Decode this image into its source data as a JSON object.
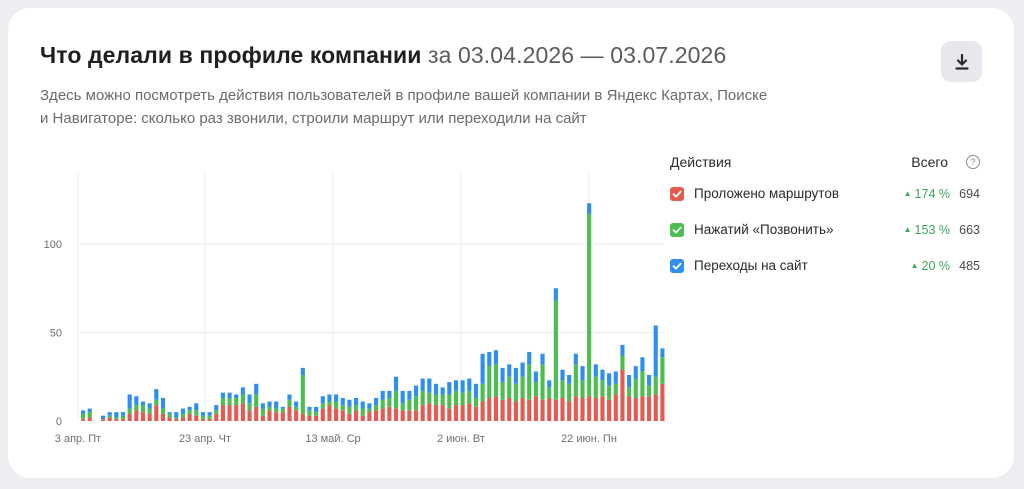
{
  "header": {
    "title": "Что делали в профиле компании",
    "period": "за 03.04.2026 — 03.07.2026",
    "subtitle_line1": "Здесь можно посмотреть действия пользователей в профиле вашей компании в Яндекс Картах, Поиске",
    "subtitle_line2": "и Навигаторе: сколько раз звонили, строили маршрут или переходили на сайт",
    "download_icon": "download-icon"
  },
  "legend": {
    "header_actions": "Действия",
    "header_total": "Всего",
    "help_glyph": "?",
    "items": [
      {
        "label": "Проложено маршрутов",
        "change": "174 %",
        "total": "694",
        "color": "#e35b52"
      },
      {
        "label": "Нажатий «Позвонить»",
        "change": "153 %",
        "total": "663",
        "color": "#4cbe50"
      },
      {
        "label": "Переходы на сайт",
        "change": "20 %",
        "total": "485",
        "color": "#2f8ff0"
      }
    ]
  },
  "colors": {
    "routes": "#e35b52",
    "calls": "#4cbe50",
    "site": "#2f8ff0",
    "up": "#3aa55a"
  },
  "chart_data": {
    "type": "bar",
    "stacked": true,
    "x_ticks": [
      "3 апр. Пт",
      "23 апр. Чт",
      "13 май. Ср",
      "2 июн. Вт",
      "22 июн. Пн"
    ],
    "y_ticks": [
      "0",
      "50",
      "100"
    ],
    "ylim": [
      0,
      140
    ],
    "grid": true,
    "series": [
      {
        "name": "Проложено маршрутов",
        "values": [
          1,
          2,
          0,
          1,
          2,
          1,
          1,
          4,
          6,
          5,
          4,
          9,
          4,
          2,
          1,
          2,
          4,
          3,
          1,
          1,
          4,
          9,
          9,
          9,
          10,
          6,
          8,
          3,
          6,
          5,
          5,
          8,
          6,
          4,
          3,
          3,
          7,
          9,
          7,
          6,
          4,
          6,
          3,
          5,
          6,
          7,
          8,
          7,
          6,
          6,
          6,
          9,
          10,
          9,
          9,
          7,
          9,
          9,
          10,
          8,
          11,
          13,
          14,
          12,
          13,
          11,
          13,
          12,
          14,
          12,
          13,
          12,
          13,
          11,
          14,
          13,
          14,
          13,
          14,
          12,
          15,
          29,
          14,
          13,
          14,
          14,
          15,
          21
        ]
      },
      {
        "name": "Нажатий «Позвонить»",
        "values": [
          3,
          3,
          0,
          0,
          1,
          1,
          2,
          3,
          3,
          4,
          3,
          3,
          3,
          2,
          1,
          2,
          2,
          3,
          2,
          2,
          2,
          4,
          4,
          4,
          5,
          4,
          7,
          4,
          2,
          2,
          2,
          4,
          2,
          22,
          3,
          2,
          3,
          2,
          4,
          3,
          4,
          3,
          4,
          2,
          3,
          5,
          5,
          10,
          4,
          6,
          8,
          8,
          6,
          6,
          6,
          8,
          8,
          7,
          7,
          5,
          10,
          18,
          18,
          10,
          12,
          10,
          12,
          20,
          8,
          20,
          6,
          56,
          10,
          10,
          18,
          10,
          103,
          12,
          9,
          8,
          6,
          8,
          5,
          11,
          14,
          6,
          10,
          15
        ]
      },
      {
        "name": "Переходы на сайт",
        "values": [
          2,
          2,
          0,
          2,
          2,
          3,
          2,
          8,
          5,
          2,
          3,
          6,
          6,
          1,
          3,
          3,
          2,
          4,
          2,
          2,
          3,
          3,
          3,
          2,
          4,
          5,
          6,
          3,
          3,
          4,
          1,
          3,
          3,
          4,
          2,
          3,
          4,
          4,
          4,
          4,
          4,
          4,
          4,
          3,
          4,
          5,
          4,
          8,
          7,
          5,
          6,
          7,
          8,
          6,
          4,
          7,
          6,
          7,
          7,
          8,
          17,
          8,
          8,
          8,
          7,
          9,
          8,
          7,
          6,
          6,
          4,
          7,
          6,
          5,
          6,
          8,
          6,
          7,
          6,
          7,
          7,
          6,
          7,
          7,
          8,
          6,
          29,
          5
        ]
      }
    ]
  }
}
